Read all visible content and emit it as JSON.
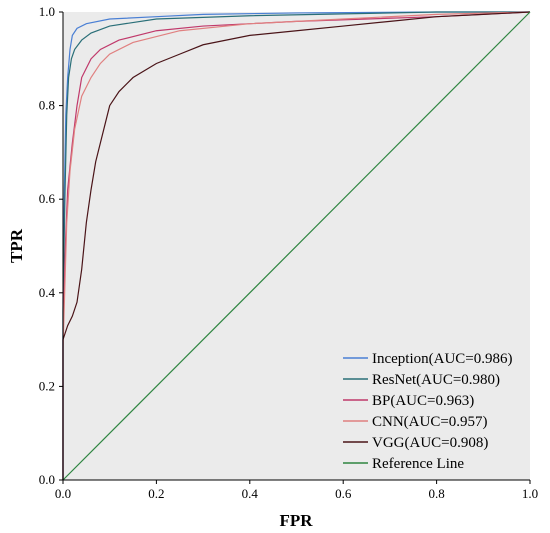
{
  "chart_data": {
    "type": "line",
    "xlabel": "FPR",
    "ylabel": "TPR",
    "xlim": [
      0,
      1
    ],
    "ylim": [
      0,
      1
    ],
    "x_ticks": [
      "0.0",
      "0.2",
      "0.4",
      "0.6",
      "0.8",
      "1.0"
    ],
    "y_ticks": [
      "0.0",
      "0.2",
      "0.4",
      "0.6",
      "0.8",
      "1.0"
    ],
    "grid": false,
    "legend_position": "bottom-right",
    "plot_background": "#ebebeb",
    "series": [
      {
        "name": "Inception(AUC=0.986)",
        "color": "#4a7fd4",
        "points": [
          [
            0,
            0
          ],
          [
            0,
            0.38
          ],
          [
            0.003,
            0.62
          ],
          [
            0.006,
            0.78
          ],
          [
            0.01,
            0.86
          ],
          [
            0.015,
            0.92
          ],
          [
            0.02,
            0.95
          ],
          [
            0.03,
            0.965
          ],
          [
            0.05,
            0.975
          ],
          [
            0.1,
            0.985
          ],
          [
            0.2,
            0.99
          ],
          [
            0.3,
            0.995
          ],
          [
            0.5,
            0.998
          ],
          [
            0.8,
            1.0
          ],
          [
            1,
            1
          ]
        ]
      },
      {
        "name": "ResNet(AUC=0.980)",
        "color": "#2a6f78",
        "points": [
          [
            0,
            0
          ],
          [
            0,
            0.36
          ],
          [
            0.004,
            0.6
          ],
          [
            0.008,
            0.78
          ],
          [
            0.012,
            0.86
          ],
          [
            0.018,
            0.9
          ],
          [
            0.025,
            0.92
          ],
          [
            0.04,
            0.94
          ],
          [
            0.06,
            0.955
          ],
          [
            0.1,
            0.97
          ],
          [
            0.2,
            0.985
          ],
          [
            0.4,
            0.992
          ],
          [
            0.8,
            1.0
          ],
          [
            1,
            1
          ]
        ]
      },
      {
        "name": "BP(AUC=0.963)",
        "color": "#c0396b",
        "points": [
          [
            0,
            0
          ],
          [
            0,
            0.3
          ],
          [
            0.005,
            0.5
          ],
          [
            0.01,
            0.62
          ],
          [
            0.02,
            0.72
          ],
          [
            0.03,
            0.8
          ],
          [
            0.04,
            0.86
          ],
          [
            0.06,
            0.9
          ],
          [
            0.08,
            0.92
          ],
          [
            0.12,
            0.94
          ],
          [
            0.2,
            0.96
          ],
          [
            0.3,
            0.97
          ],
          [
            0.5,
            0.98
          ],
          [
            0.8,
            0.99
          ],
          [
            1,
            1
          ]
        ]
      },
      {
        "name": "CNN(AUC=0.957)",
        "color": "#e08080",
        "points": [
          [
            0,
            0
          ],
          [
            0,
            0.28
          ],
          [
            0.008,
            0.55
          ],
          [
            0.015,
            0.66
          ],
          [
            0.025,
            0.75
          ],
          [
            0.04,
            0.82
          ],
          [
            0.06,
            0.86
          ],
          [
            0.08,
            0.89
          ],
          [
            0.1,
            0.91
          ],
          [
            0.15,
            0.935
          ],
          [
            0.25,
            0.96
          ],
          [
            0.4,
            0.975
          ],
          [
            0.6,
            0.985
          ],
          [
            0.8,
            0.995
          ],
          [
            1,
            1
          ]
        ]
      },
      {
        "name": "VGG(AUC=0.908)",
        "color": "#4a1418",
        "points": [
          [
            0,
            0
          ],
          [
            0,
            0.3
          ],
          [
            0.01,
            0.33
          ],
          [
            0.02,
            0.35
          ],
          [
            0.03,
            0.38
          ],
          [
            0.04,
            0.45
          ],
          [
            0.05,
            0.55
          ],
          [
            0.06,
            0.62
          ],
          [
            0.07,
            0.68
          ],
          [
            0.08,
            0.72
          ],
          [
            0.09,
            0.76
          ],
          [
            0.1,
            0.8
          ],
          [
            0.12,
            0.83
          ],
          [
            0.15,
            0.86
          ],
          [
            0.2,
            0.89
          ],
          [
            0.25,
            0.91
          ],
          [
            0.3,
            0.93
          ],
          [
            0.4,
            0.95
          ],
          [
            0.5,
            0.96
          ],
          [
            0.6,
            0.97
          ],
          [
            0.7,
            0.98
          ],
          [
            0.8,
            0.99
          ],
          [
            0.9,
            0.995
          ],
          [
            1,
            1
          ]
        ]
      },
      {
        "name": "Reference Line",
        "color": "#2e8540",
        "points": [
          [
            0,
            0
          ],
          [
            1,
            1
          ]
        ]
      }
    ]
  }
}
